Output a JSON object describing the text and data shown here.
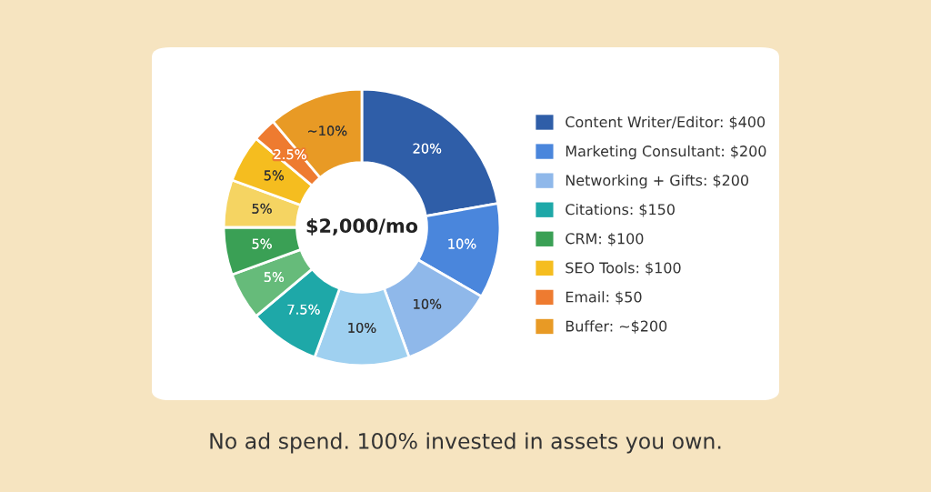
{
  "chart_data": {
    "type": "donut",
    "categories": [
      "Content Writer/Editor: $400",
      "Marketing Consultant: $200",
      "Networking + Gifts: $200",
      null,
      "Citations: $150",
      null,
      "CRM: $100",
      null,
      "SEO Tools: $100",
      "Email: $50",
      "Buffer: ~$200"
    ],
    "values": [
      20,
      10,
      10,
      10,
      7.5,
      5,
      5,
      5,
      5,
      2.5,
      10
    ],
    "value_labels": [
      "20%",
      "10%",
      "10%",
      "10%",
      "7.5%",
      "5%",
      "5%",
      "5%",
      "5%",
      "2.5%",
      "~10%"
    ],
    "colors": [
      "#2f5ea8",
      "#4a86dc",
      "#8fb8ea",
      "#9fd0f0",
      "#1ea8a8",
      "#66bb7a",
      "#3aa055",
      "#f5d462",
      "#f5bd1f",
      "#ee7b30",
      "#e89a25"
    ],
    "legend": "right",
    "annotations": [
      "$2,000/mo",
      "No ad spend. 100% invested in assets you own."
    ]
  }
}
